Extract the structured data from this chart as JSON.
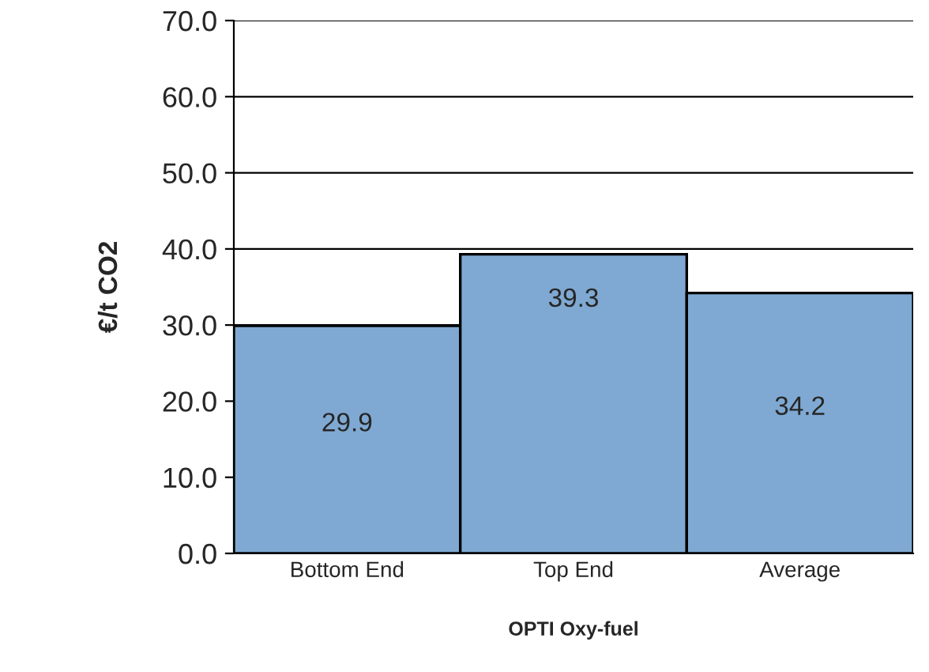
{
  "chart_data": {
    "type": "bar",
    "categories": [
      "Bottom End",
      "Top End",
      "Average"
    ],
    "values": [
      29.9,
      39.3,
      34.2
    ],
    "color": "#7fa9d2",
    "xlabel": "OPTI Oxy-fuel",
    "ylabel": "€/t CO2",
    "ylim": [
      0,
      70
    ],
    "yticks": [
      {
        "value": 0,
        "label": "0.0"
      },
      {
        "value": 10,
        "label": "10.0"
      },
      {
        "value": 20,
        "label": "20.0"
      },
      {
        "value": 30,
        "label": "30.0"
      },
      {
        "value": 40,
        "label": "40.0"
      },
      {
        "value": 50,
        "label": "50.0"
      },
      {
        "value": 60,
        "label": "60.0"
      },
      {
        "value": 70,
        "label": "70.0"
      }
    ],
    "grid": "y",
    "data_labels": true
  }
}
